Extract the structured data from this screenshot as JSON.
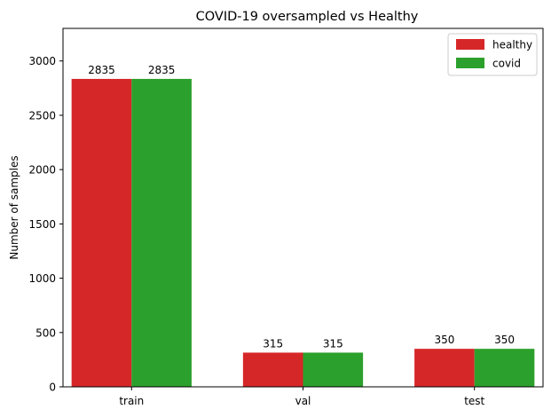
{
  "chart_data": {
    "type": "bar",
    "title": "COVID-19 oversampled vs Healthy",
    "xlabel": "",
    "ylabel": "Number of samples",
    "categories": [
      "train",
      "val",
      "test"
    ],
    "series": [
      {
        "name": "healthy",
        "values": [
          2835,
          315,
          350
        ],
        "color": "#d62728"
      },
      {
        "name": "covid",
        "values": [
          2835,
          315,
          350
        ],
        "color": "#2ca02c"
      }
    ],
    "ylim": [
      0,
      3300
    ],
    "yticks": [
      0,
      500,
      1000,
      1500,
      2000,
      2500,
      3000
    ],
    "grid": false,
    "legend_position": "top-right"
  }
}
